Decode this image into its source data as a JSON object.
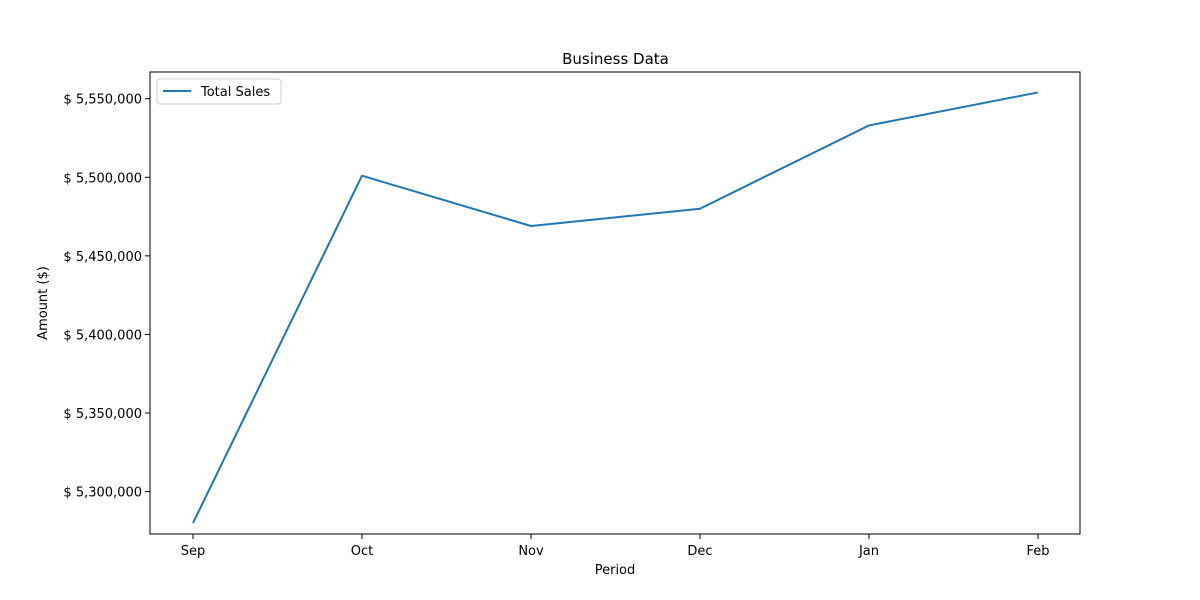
{
  "chart_data": {
    "type": "line",
    "title": "Business Data",
    "xlabel": "Period",
    "ylabel": "Amount ($)",
    "categories": [
      "Sep",
      "Oct",
      "Nov",
      "Dec",
      "Jan",
      "Feb"
    ],
    "series": [
      {
        "name": "Total Sales",
        "color": "#1f77b4",
        "values": [
          5280000,
          5501000,
          5469000,
          5480000,
          5533000,
          5554000
        ]
      }
    ],
    "ylim": [
      5273000,
      5567000
    ],
    "yticks": [
      5300000,
      5350000,
      5400000,
      5450000,
      5500000,
      5550000
    ],
    "ytick_labels": [
      "$ 5,300,000",
      "$ 5,350,000",
      "$ 5,400,000",
      "$ 5,450,000",
      "$ 5,500,000",
      "$ 5,550,000"
    ],
    "grid": false,
    "legend_position": "top-left"
  }
}
